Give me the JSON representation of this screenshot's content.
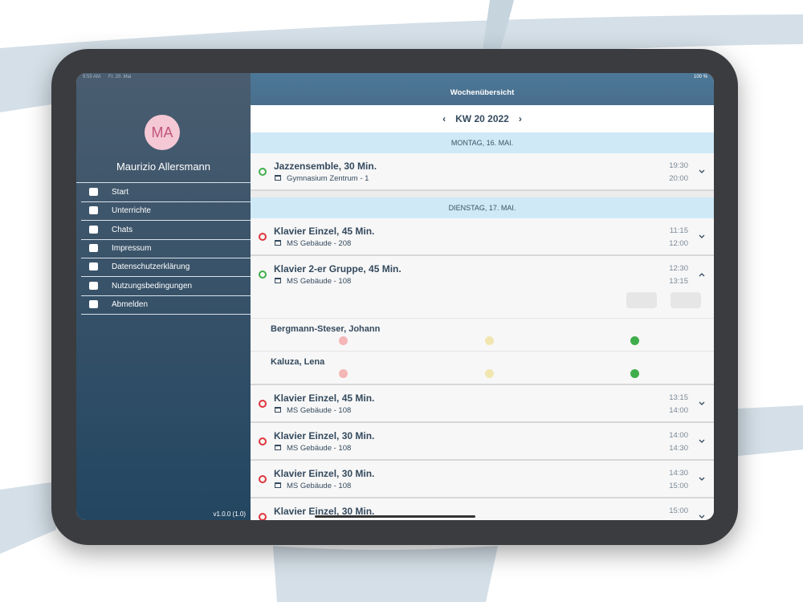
{
  "status_bar": {
    "time": "9:55 AM",
    "date": "Fr. 20. Mai",
    "battery": "100 %"
  },
  "sidebar": {
    "avatar_initials": "MA",
    "user_name": "Maurizio Allersmann",
    "menu": [
      "Start",
      "Unterrichte",
      "Chats",
      "Impressum",
      "Datenschutzerklärung",
      "Nutzungsbedingungen",
      "Abmelden"
    ],
    "version": "v1.0.0 (1.0)"
  },
  "header": {
    "title": "Wochenübersicht",
    "week": "KW 20 2022"
  },
  "days": [
    {
      "label": "MONTAG, 16. MAI.",
      "lessons": [
        {
          "title": "Jazzensemble, 30 Min.",
          "location": "Gymnasium Zentrum - 1",
          "start": "19:30",
          "end": "20:00",
          "status_color": "#3fae4a"
        }
      ]
    },
    {
      "label": "DIENSTAG, 17. MAI.",
      "lessons": [
        {
          "title": "Klavier Einzel, 45 Min.",
          "location": "MS Gebäude - 208",
          "start": "11:15",
          "end": "12:00",
          "status_color": "#e0353b"
        },
        {
          "title": "Klavier 2-er Gruppe, 45 Min.",
          "location": "MS Gebäude - 108",
          "start": "12:30",
          "end": "13:15",
          "status_color": "#3fae4a",
          "participants": [
            "Bergmann-Steser, Johann",
            "Kaluza, Lena"
          ]
        },
        {
          "title": "Klavier Einzel, 45 Min.",
          "location": "MS Gebäude - 108",
          "start": "13:15",
          "end": "14:00",
          "status_color": "#e0353b"
        },
        {
          "title": "Klavier Einzel, 30 Min.",
          "location": "MS Gebäude - 108",
          "start": "14:00",
          "end": "14:30",
          "status_color": "#e0353b"
        },
        {
          "title": "Klavier Einzel, 30 Min.",
          "location": "MS Gebäude - 108",
          "start": "14:30",
          "end": "15:00",
          "status_color": "#e0353b"
        },
        {
          "title": "Klavier Einzel, 30 Min.",
          "start": "15:00",
          "status_color": "#e0353b"
        }
      ]
    }
  ]
}
